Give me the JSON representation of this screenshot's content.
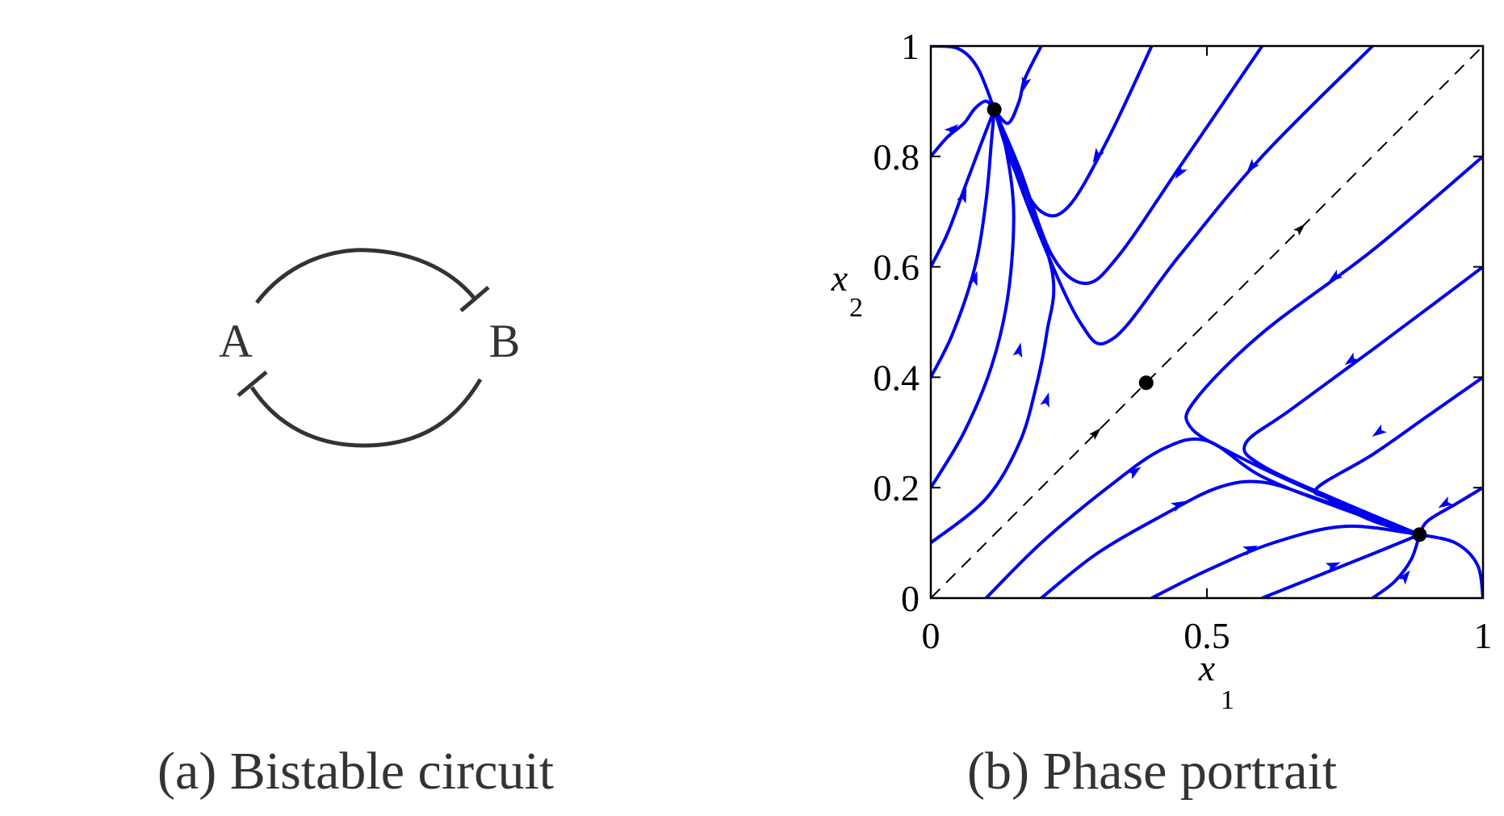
{
  "panel_a": {
    "caption": "(a) Bistable circuit",
    "node_a": "A",
    "node_b": "B"
  },
  "panel_b": {
    "caption": "(b) Phase portrait"
  },
  "colors": {
    "trajectory": "#0000ee",
    "circuit": "#333333",
    "axes": "#000000"
  },
  "chart_data": {
    "type": "scatter",
    "xlabel": "x",
    "xlabel_sub": "1",
    "ylabel": "x",
    "ylabel_sub": "2",
    "xlim": [
      0,
      1
    ],
    "ylim": [
      0,
      1
    ],
    "xticks": [
      0,
      0.5,
      1
    ],
    "xtick_labels": [
      "0",
      "0.5",
      "1"
    ],
    "yticks": [
      0,
      0.2,
      0.4,
      0.6,
      0.8,
      1
    ],
    "ytick_labels": [
      "0",
      "0.2",
      "0.4",
      "0.6",
      "0.8",
      "1"
    ],
    "grid": false,
    "fixed_points": [
      [
        0.115,
        0.885
      ],
      [
        0.39,
        0.39
      ],
      [
        0.885,
        0.115
      ]
    ],
    "diagonal": {
      "style": "dashed",
      "from": [
        0,
        0
      ],
      "to": [
        1,
        1
      ],
      "arrows": [
        [
          0.3,
          0.3
        ],
        [
          0.67,
          0.67
        ]
      ]
    },
    "trajectories": [
      {
        "points": [
          [
            0,
            0.8
          ],
          [
            0.03,
            0.835
          ],
          [
            0.06,
            0.86
          ],
          [
            0.08,
            0.887
          ],
          [
            0.1,
            0.9
          ],
          [
            0.115,
            0.885
          ]
        ],
        "arrow": [
          0.04,
          0.85
        ]
      },
      {
        "points": [
          [
            0,
            0.6
          ],
          [
            0.03,
            0.66
          ],
          [
            0.06,
            0.74
          ],
          [
            0.09,
            0.82
          ],
          [
            0.115,
            0.885
          ]
        ],
        "arrow": [
          0.06,
          0.73
        ]
      },
      {
        "points": [
          [
            0,
            0.4
          ],
          [
            0.04,
            0.48
          ],
          [
            0.08,
            0.6
          ],
          [
            0.1,
            0.72
          ],
          [
            0.11,
            0.83
          ],
          [
            0.115,
            0.885
          ]
        ],
        "arrow": [
          0.08,
          0.58
        ]
      },
      {
        "points": [
          [
            0,
            0.2
          ],
          [
            0.06,
            0.3
          ],
          [
            0.11,
            0.42
          ],
          [
            0.14,
            0.55
          ],
          [
            0.15,
            0.7
          ],
          [
            0.135,
            0.82
          ],
          [
            0.115,
            0.885
          ]
        ],
        "arrow": [
          0.16,
          0.45
        ]
      },
      {
        "points": [
          [
            0,
            0.1
          ],
          [
            0.1,
            0.18
          ],
          [
            0.16,
            0.28
          ],
          [
            0.19,
            0.38
          ],
          [
            0.21,
            0.48
          ],
          [
            0.22,
            0.59
          ],
          [
            0.16,
            0.77
          ],
          [
            0.115,
            0.885
          ]
        ],
        "arrow": [
          0.21,
          0.36
        ]
      },
      {
        "points": [
          [
            0,
            1
          ],
          [
            0.05,
            0.995
          ],
          [
            0.085,
            0.96
          ],
          [
            0.115,
            0.885
          ]
        ]
      },
      {
        "points": [
          [
            0.2,
            1
          ],
          [
            0.17,
            0.94
          ],
          [
            0.16,
            0.9
          ],
          [
            0.14,
            0.86
          ],
          [
            0.115,
            0.885
          ]
        ],
        "arrow": [
          0.17,
          0.93
        ]
      },
      {
        "points": [
          [
            0.4,
            1
          ],
          [
            0.32,
            0.83
          ],
          [
            0.25,
            0.71
          ],
          [
            0.2,
            0.7
          ],
          [
            0.15,
            0.78
          ],
          [
            0.115,
            0.885
          ]
        ],
        "arrow": [
          0.3,
          0.8
        ]
      },
      {
        "points": [
          [
            0.6,
            1
          ],
          [
            0.45,
            0.78
          ],
          [
            0.34,
            0.62
          ],
          [
            0.28,
            0.57
          ],
          [
            0.22,
            0.62
          ],
          [
            0.16,
            0.78
          ],
          [
            0.115,
            0.885
          ]
        ],
        "arrow": [
          0.45,
          0.77
        ]
      },
      {
        "points": [
          [
            0.8,
            1
          ],
          [
            0.6,
            0.8
          ],
          [
            0.45,
            0.62
          ],
          [
            0.33,
            0.47
          ],
          [
            0.27,
            0.5
          ],
          [
            0.18,
            0.7
          ],
          [
            0.115,
            0.885
          ]
        ],
        "arrow": [
          0.58,
          0.78
        ]
      },
      {
        "points": [
          [
            0,
            0
          ],
          [
            1,
            1
          ]
        ]
      },
      {
        "points": [
          [
            1,
            0.8
          ],
          [
            0.8,
            0.63
          ],
          [
            0.6,
            0.48
          ],
          [
            0.48,
            0.36
          ],
          [
            0.47,
            0.31
          ],
          [
            0.55,
            0.26
          ],
          [
            0.7,
            0.19
          ],
          [
            0.885,
            0.115
          ]
        ],
        "arrow": [
          0.73,
          0.58
        ]
      },
      {
        "points": [
          [
            1,
            0.6
          ],
          [
            0.8,
            0.45
          ],
          [
            0.65,
            0.34
          ],
          [
            0.57,
            0.28
          ],
          [
            0.6,
            0.24
          ],
          [
            0.73,
            0.18
          ],
          [
            0.885,
            0.115
          ]
        ],
        "arrow": [
          0.76,
          0.43
        ]
      },
      {
        "points": [
          [
            1,
            0.4
          ],
          [
            0.9,
            0.33
          ],
          [
            0.8,
            0.26
          ],
          [
            0.7,
            0.2
          ],
          [
            0.72,
            0.18
          ],
          [
            0.8,
            0.14
          ],
          [
            0.885,
            0.115
          ]
        ],
        "arrow": [
          0.81,
          0.3
        ]
      },
      {
        "points": [
          [
            1,
            0.2
          ],
          [
            0.95,
            0.17
          ],
          [
            0.9,
            0.14
          ],
          [
            0.885,
            0.115
          ]
        ],
        "arrow": [
          0.93,
          0.17
        ]
      },
      {
        "points": [
          [
            0.1,
            0
          ],
          [
            0.2,
            0.1
          ],
          [
            0.32,
            0.2
          ],
          [
            0.42,
            0.27
          ],
          [
            0.5,
            0.285
          ],
          [
            0.6,
            0.22
          ],
          [
            0.75,
            0.16
          ],
          [
            0.885,
            0.115
          ]
        ],
        "arrow": [
          0.37,
          0.23
        ]
      },
      {
        "points": [
          [
            0.2,
            0
          ],
          [
            0.3,
            0.08
          ],
          [
            0.42,
            0.15
          ],
          [
            0.52,
            0.2
          ],
          [
            0.6,
            0.21
          ],
          [
            0.7,
            0.18
          ],
          [
            0.885,
            0.115
          ]
        ],
        "arrow": [
          0.45,
          0.17
        ]
      },
      {
        "points": [
          [
            0.4,
            0
          ],
          [
            0.5,
            0.05
          ],
          [
            0.62,
            0.1
          ],
          [
            0.75,
            0.13
          ],
          [
            0.885,
            0.115
          ]
        ],
        "arrow": [
          0.58,
          0.09
        ]
      },
      {
        "points": [
          [
            0.6,
            0
          ],
          [
            0.7,
            0.04
          ],
          [
            0.8,
            0.08
          ],
          [
            0.885,
            0.115
          ]
        ],
        "arrow": [
          0.73,
          0.06
        ]
      },
      {
        "points": [
          [
            0.8,
            0
          ],
          [
            0.84,
            0.03
          ],
          [
            0.87,
            0.07
          ],
          [
            0.885,
            0.115
          ]
        ],
        "arrow": [
          0.86,
          0.04
        ]
      },
      {
        "points": [
          [
            1,
            0
          ],
          [
            0.99,
            0.06
          ],
          [
            0.95,
            0.1
          ],
          [
            0.885,
            0.115
          ]
        ]
      }
    ]
  }
}
